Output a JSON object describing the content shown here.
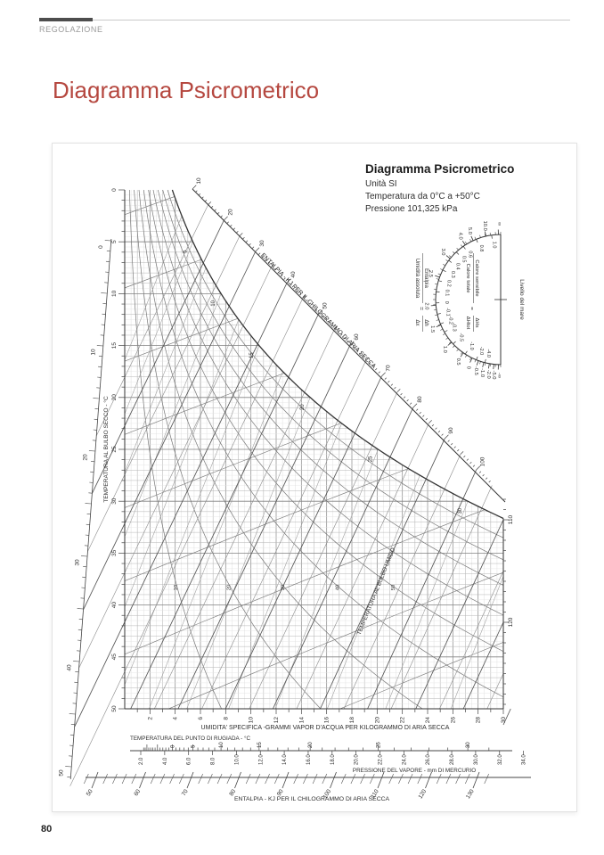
{
  "page": {
    "header": "REGOLAZIONE",
    "title": "Diagramma Psicrometrico",
    "number": "80"
  },
  "chart_header": {
    "title": "Diagramma Psicrometrico",
    "lines": [
      "Unità SI",
      "Temperatura da 0°C a +50°C",
      "Pressione 101,325 kPa"
    ]
  },
  "chart_data": {
    "type": "line",
    "variant": "psychrometric-chart",
    "title": "Diagramma Psicrometrico",
    "subtitle": [
      "Unità SI",
      "Temperatura da 0°C a +50°C",
      "Pressione 101,325 kPa"
    ],
    "axes": {
      "dry_bulb": {
        "label": "TEMPERATURA AL BULBO SECCO - °C",
        "min": 0,
        "max": 50,
        "tick_labels": [
          0,
          5,
          10,
          15,
          20,
          25,
          30,
          35,
          40,
          45,
          50
        ]
      },
      "specific_humidity": {
        "label": "UMIDITA' SPECIFICA -GRAMMI VAPOR D'ACQUA  PER KILOGRAMMO DI ARIA SECCA",
        "min": 0,
        "max": 30,
        "tick_labels": [
          2,
          4,
          6,
          8,
          10,
          12,
          14,
          16,
          18,
          20,
          22,
          24,
          26,
          28,
          30
        ]
      },
      "dew_point": {
        "label": "TEMPERATURA DEL PUNTO DI RUGIADA - °C",
        "tick_labels": [
          0,
          5,
          10,
          15,
          20,
          25,
          30
        ]
      },
      "vapor_pressure": {
        "label": "PRESSIONE DEL VAPORE - mm DI MERCURIO",
        "tick_labels": [
          "2.0",
          "4.0",
          "6.0",
          "8.0",
          "10.0",
          "12.0",
          "14.0",
          "16.0",
          "18.0",
          "20.0",
          "22.0",
          "24.0",
          "26.0",
          "28.0",
          "30.0",
          "32.0",
          "34.0"
        ]
      },
      "enthalpy_bottom": {
        "label": "ENTALPIA - KJ PER IL CHILOGRAMMO DI ARIA SECCA",
        "tick_labels": [
          50,
          60,
          70,
          80,
          90,
          100,
          110,
          120,
          130
        ]
      },
      "enthalpy_diagonal": {
        "label": "ENTALPIA - KJ PER IL CHILOGRAMMO DI ARIA SECCA",
        "tick_labels": [
          10,
          20,
          30,
          40,
          50,
          60,
          70,
          80,
          90,
          100
        ],
        "right_edge_tick_labels": [
          110,
          120
        ]
      },
      "left_edge": {
        "tick_labels": [
          0,
          10,
          20,
          30,
          40,
          50
        ]
      }
    },
    "families": {
      "relative_humidity": {
        "values_percent": [
          10,
          20,
          30,
          40,
          50,
          60,
          70,
          80,
          90
        ],
        "labels_shown": [
          10,
          20,
          30,
          40,
          50
        ]
      },
      "wet_bulb": {
        "label": "TEMPERATURA AL BULBO UMIDO",
        "tick_labels": [
          5,
          10,
          15,
          20,
          25,
          30
        ]
      },
      "specific_volume": {
        "values": [
          0.78,
          0.8,
          0.82,
          0.84,
          0.86,
          0.88,
          0.9,
          0.92,
          0.94,
          0.96
        ]
      }
    },
    "protractor": {
      "right_label": "Livello del mare",
      "left_fraction": {
        "numerator": "Entalpia",
        "denominator": "Umidità assoluta",
        "equals_numerator": "Δh",
        "equals_denominator": "Δx"
      },
      "inner_fraction": {
        "numerator": "Calore sensibile",
        "denominator": "Calore totale",
        "equals_numerator": "ΔHs",
        "equals_denominator": "ΔHtot"
      },
      "outer_scale": [
        "∞",
        "10.0",
        "5.0",
        "4.0",
        "3.0",
        "2.5",
        "2.0",
        "1.5",
        "1.0",
        "0.5",
        "0",
        "-0.5",
        "-1.0",
        "-2.0",
        "-5.0",
        "-∞"
      ],
      "inner_scale": [
        "1.0",
        "0.8",
        "0.6",
        "0.5",
        "0.4",
        "0.3",
        "0.2",
        "0.1",
        "0",
        "-0.1",
        "-0.2",
        "-0.3",
        "-0.5",
        "-1.0",
        "-2.0",
        "-4.0"
      ]
    },
    "pressure_note": "Pressione 101,325 kPa"
  }
}
